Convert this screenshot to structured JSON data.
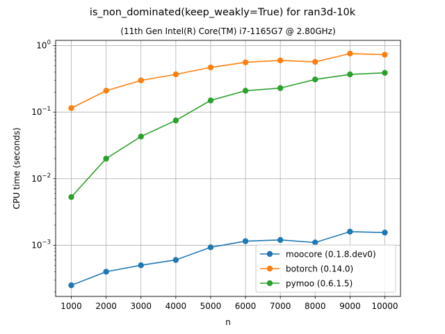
{
  "chart_data": {
    "type": "line",
    "title": "is_non_dominated(keep_weakly=True) for ran3d-10k",
    "subtitle": "(11th Gen Intel(R) Core(TM) i7-1165G7 @ 2.80GHz)",
    "xlabel": "n",
    "ylabel": "CPU time (seconds)",
    "yscale": "log",
    "xlim": [
      550,
      10450
    ],
    "ylim": [
      0.00017,
      1.2
    ],
    "x": [
      1000,
      2000,
      3000,
      4000,
      5000,
      6000,
      7000,
      8000,
      9000,
      10000
    ],
    "xticks": [
      1000,
      2000,
      3000,
      4000,
      5000,
      6000,
      7000,
      8000,
      9000,
      10000
    ],
    "yticks": [
      0.001,
      0.01,
      0.1,
      1
    ],
    "ytick_labels": [
      {
        "base": "10",
        "exp": "−3"
      },
      {
        "base": "10",
        "exp": "−2"
      },
      {
        "base": "10",
        "exp": "−1"
      },
      {
        "base": "10",
        "exp": "0"
      }
    ],
    "grid": true,
    "legend_position": "lower-right",
    "series": [
      {
        "name": "moocore (0.1.8.dev0)",
        "color": "#1f77b4",
        "values": [
          0.00025,
          0.0004,
          0.0005,
          0.0006,
          0.00093,
          0.00115,
          0.0012,
          0.0011,
          0.0016,
          0.00155
        ]
      },
      {
        "name": "botorch (0.14.0)",
        "color": "#ff7f0e",
        "values": [
          0.115,
          0.21,
          0.3,
          0.37,
          0.47,
          0.56,
          0.6,
          0.57,
          0.76,
          0.73
        ]
      },
      {
        "name": "pymoo (0.6.1.5)",
        "color": "#2ca02c",
        "values": [
          0.0053,
          0.02,
          0.043,
          0.075,
          0.15,
          0.21,
          0.23,
          0.31,
          0.37,
          0.39
        ]
      }
    ]
  }
}
